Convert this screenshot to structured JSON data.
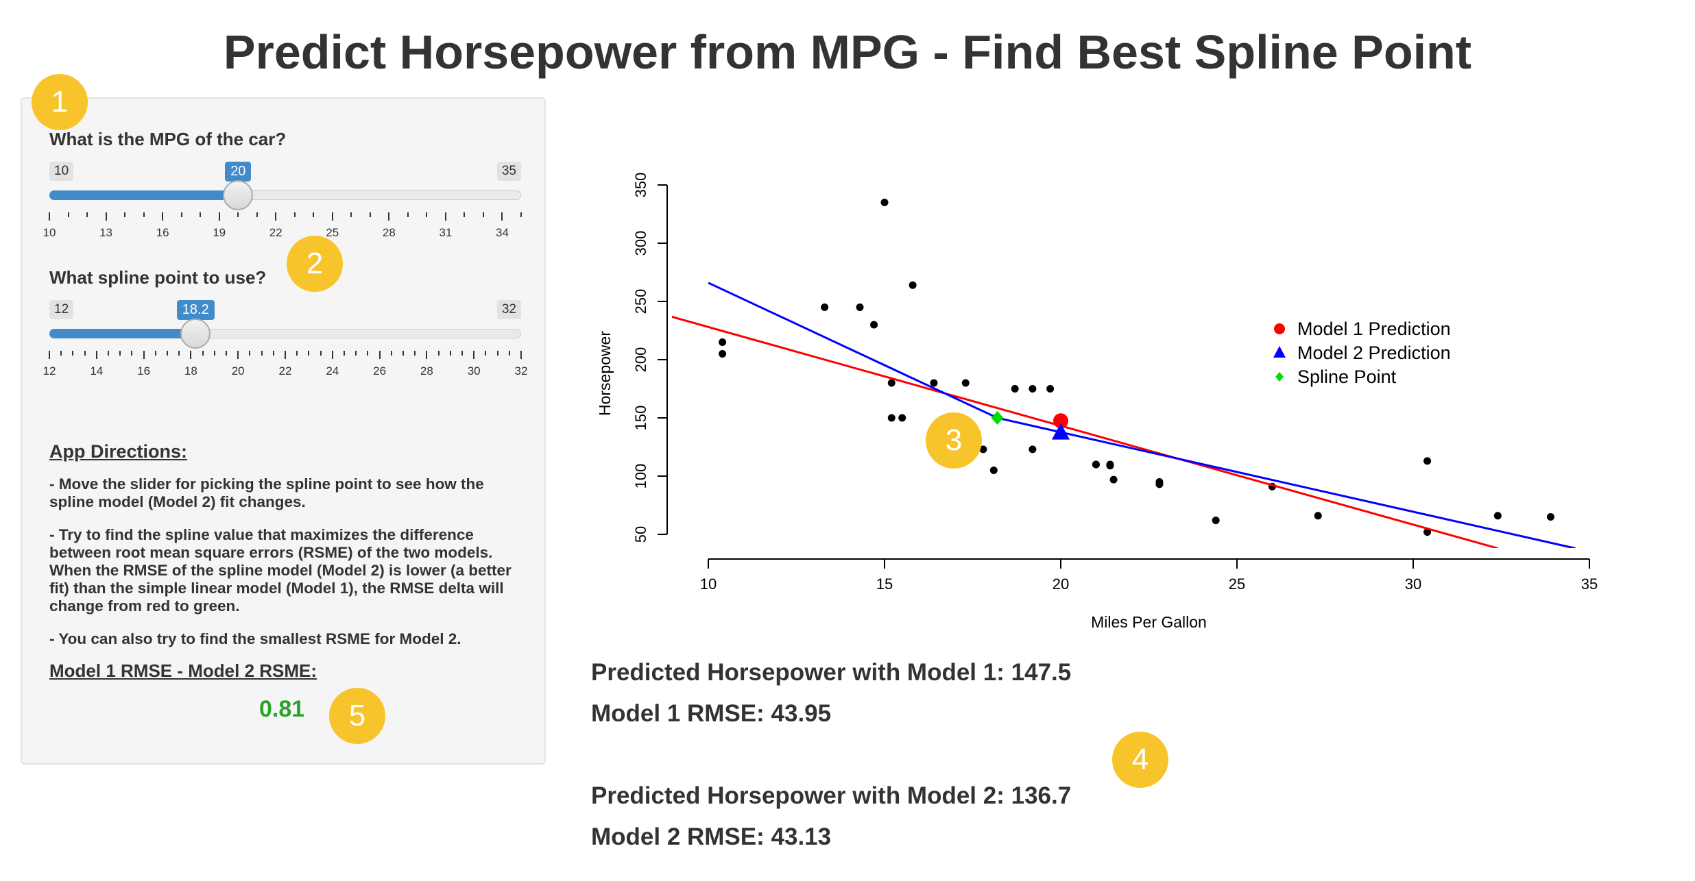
{
  "title": "Predict Horsepower from MPG - Find Best Spline Point",
  "mpg_slider": {
    "label": "What is the MPG of the car?",
    "min": 10,
    "max": 35,
    "value": 20,
    "min_label": "10",
    "max_label": "35",
    "value_label": "20",
    "tick_labels": [
      "10",
      "13",
      "16",
      "19",
      "22",
      "25",
      "28",
      "31",
      "34"
    ]
  },
  "spline_slider": {
    "label": "What spline point to use?",
    "min": 12,
    "max": 32,
    "value": 18.2,
    "min_label": "12",
    "max_label": "32",
    "value_label": "18.2",
    "tick_labels": [
      "12",
      "14",
      "16",
      "18",
      "20",
      "22",
      "24",
      "26",
      "28",
      "30",
      "32"
    ]
  },
  "directions": {
    "heading": "App Directions:",
    "p1": "- Move the slider for picking the spline point to see how the spline model (Model 2) fit changes.",
    "p2": "- Try to find the spline value that maximizes the difference between root mean square errors (RSME) of the two models. When the RMSE of the spline model (Model 2) is lower (a better fit) than the simple linear model (Model 1), the RMSE delta will change from red to green.",
    "p3": "- You can also try to find the smallest RSME for Model 2."
  },
  "rmse_delta": {
    "heading": "Model 1 RMSE - Model 2 RSME:",
    "value": "0.81",
    "color": "#28a428"
  },
  "outputs": {
    "m1_pred": "Predicted Horsepower with Model 1: 147.5",
    "m1_rmse": "Model 1 RMSE: 43.95",
    "m2_pred": "Predicted Horsepower with Model 2: 136.7",
    "m2_rmse": "Model 2 RMSE: 43.13"
  },
  "badges": [
    "1",
    "2",
    "3",
    "4",
    "5"
  ],
  "chart_data": {
    "type": "scatter",
    "xlabel": "Miles Per Gallon",
    "ylabel": "Horsepower",
    "xlim": [
      10,
      35
    ],
    "ylim": [
      50,
      350
    ],
    "x_ticks": [
      10,
      15,
      20,
      25,
      30,
      35
    ],
    "y_ticks": [
      50,
      100,
      150,
      200,
      250,
      300,
      350
    ],
    "points": [
      [
        21.0,
        110
      ],
      [
        21.0,
        110
      ],
      [
        22.8,
        93
      ],
      [
        21.4,
        110
      ],
      [
        18.7,
        175
      ],
      [
        18.1,
        105
      ],
      [
        14.3,
        245
      ],
      [
        24.4,
        62
      ],
      [
        22.8,
        95
      ],
      [
        19.2,
        123
      ],
      [
        17.8,
        123
      ],
      [
        16.4,
        180
      ],
      [
        17.3,
        180
      ],
      [
        15.2,
        180
      ],
      [
        10.4,
        205
      ],
      [
        10.4,
        215
      ],
      [
        14.7,
        230
      ],
      [
        32.4,
        66
      ],
      [
        30.4,
        52
      ],
      [
        33.9,
        65
      ],
      [
        21.5,
        97
      ],
      [
        15.5,
        150
      ],
      [
        15.2,
        150
      ],
      [
        13.3,
        245
      ],
      [
        19.2,
        175
      ],
      [
        27.3,
        66
      ],
      [
        26.0,
        91
      ],
      [
        30.4,
        113
      ],
      [
        15.8,
        264
      ],
      [
        19.7,
        175
      ],
      [
        15.0,
        335
      ],
      [
        21.4,
        109
      ]
    ],
    "model1_line": [
      [
        8,
        245
      ],
      [
        32.4,
        38
      ]
    ],
    "model2_line": [
      [
        10,
        266
      ],
      [
        18.2,
        150
      ],
      [
        34.6,
        38
      ]
    ],
    "prediction_model1": [
      20,
      147.5
    ],
    "prediction_model2": [
      20,
      136.7
    ],
    "spline_point": [
      18.2,
      150
    ],
    "legend": [
      {
        "label": "Model 1 Prediction",
        "color": "#ff0000",
        "marker": "circle"
      },
      {
        "label": "Model 2 Prediction",
        "color": "#0000ff",
        "marker": "triangle"
      },
      {
        "label": "Spline Point",
        "color": "#00dd00",
        "marker": "diamond"
      }
    ],
    "legend_position": "top-right",
    "grid": false
  }
}
